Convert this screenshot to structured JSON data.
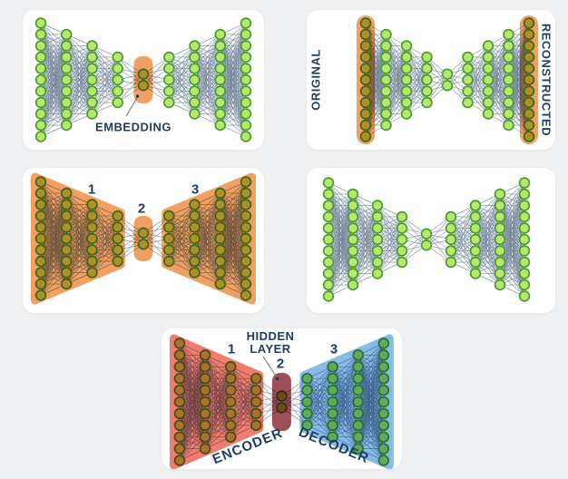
{
  "colors": {
    "background": "#eef0f2",
    "card": "#ffffff",
    "edge": "#76879e",
    "node_fill": "#b5e86b",
    "node_stroke": "#4c9b31",
    "label": "#1d3e5f",
    "overlay_orange": "#efa164",
    "overlay_red": "#ee7d6f",
    "overlay_blue": "#88bae8",
    "overlay_maroon": "#9d4e57"
  },
  "network": {
    "layers": [
      11,
      9,
      7,
      5,
      2,
      5,
      7,
      9,
      11
    ]
  },
  "panels": {
    "embedding": {
      "label": "EMBEDDING"
    },
    "original_reconstructed": {
      "left_label": "ORIGINAL",
      "right_label": "RECONSTRUCTED"
    },
    "stages": {
      "encoder_num": "1",
      "bottleneck_num": "2",
      "decoder_num": "3"
    },
    "plain": {},
    "encoder_decoder": {
      "encoder_num": "1",
      "bottleneck_num": "2",
      "decoder_num": "3",
      "hidden_label": "HIDDEN LAYER",
      "encoder_label": "ENCODER",
      "decoder_label": "DECODER"
    }
  }
}
